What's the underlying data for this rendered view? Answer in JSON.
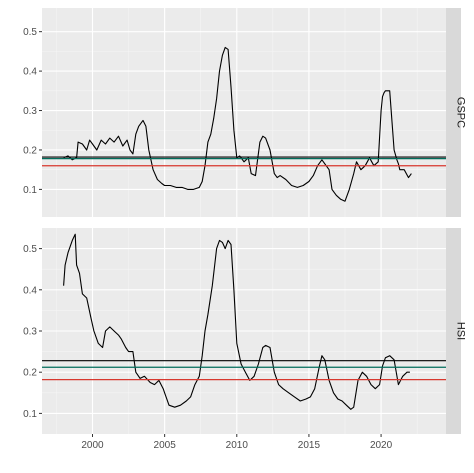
{
  "chart_data": {
    "type": "line",
    "layout": "faceted",
    "xlabel": "",
    "ylabel": "",
    "xlim": [
      1996.5,
      2024.5
    ],
    "x_ticks": [
      "2000",
      "2005",
      "2010",
      "2015",
      "2020"
    ],
    "grid": true,
    "colors": {
      "series": "#000000",
      "black_hline": "#000000",
      "green_hline": "#006d5b",
      "red_hline": "#d7382f",
      "panel_background": "#ebebeb",
      "strip_background": "#d9d9d9"
    },
    "facets": [
      {
        "label": "GSPC",
        "ylim": [
          0.03,
          0.56
        ],
        "y_ticks": [
          "0.1",
          "0.2",
          "0.3",
          "0.4",
          "0.5"
        ],
        "hlines": [
          {
            "color": "black",
            "value": 0.182
          },
          {
            "color": "green",
            "value": 0.178
          },
          {
            "color": "red",
            "value": 0.16
          }
        ],
        "series": {
          "x": [
            1998.0,
            1998.3,
            1998.6,
            1998.9,
            1999.0,
            1999.3,
            1999.6,
            1999.8,
            2000.0,
            2000.3,
            2000.6,
            2000.9,
            2001.2,
            2001.5,
            2001.8,
            2002.1,
            2002.4,
            2002.6,
            2002.8,
            2003.0,
            2003.2,
            2003.5,
            2003.7,
            2003.9,
            2004.2,
            2004.5,
            2004.8,
            2005.0,
            2005.4,
            2005.8,
            2006.2,
            2006.6,
            2007.0,
            2007.4,
            2007.6,
            2007.8,
            2008.0,
            2008.2,
            2008.4,
            2008.6,
            2008.8,
            2009.0,
            2009.2,
            2009.4,
            2009.6,
            2009.8,
            2010.0,
            2010.2,
            2010.5,
            2010.8,
            2011.0,
            2011.3,
            2011.6,
            2011.8,
            2012.0,
            2012.3,
            2012.6,
            2012.8,
            2013.0,
            2013.4,
            2013.8,
            2014.2,
            2014.6,
            2015.0,
            2015.3,
            2015.6,
            2015.9,
            2016.1,
            2016.4,
            2016.6,
            2016.9,
            2017.2,
            2017.5,
            2017.8,
            2018.1,
            2018.3,
            2018.6,
            2018.9,
            2019.2,
            2019.5,
            2019.8,
            2020.0,
            2020.1,
            2020.2,
            2020.3,
            2020.6,
            2020.9,
            2021.1,
            2021.2,
            2021.3,
            2021.6,
            2021.9,
            2022.1
          ],
          "y": [
            0.18,
            0.185,
            0.175,
            0.18,
            0.22,
            0.215,
            0.2,
            0.225,
            0.215,
            0.2,
            0.225,
            0.215,
            0.23,
            0.22,
            0.235,
            0.21,
            0.225,
            0.2,
            0.19,
            0.24,
            0.26,
            0.275,
            0.26,
            0.2,
            0.15,
            0.125,
            0.115,
            0.11,
            0.11,
            0.105,
            0.105,
            0.1,
            0.1,
            0.105,
            0.12,
            0.16,
            0.22,
            0.24,
            0.28,
            0.33,
            0.4,
            0.44,
            0.46,
            0.455,
            0.36,
            0.25,
            0.18,
            0.185,
            0.17,
            0.18,
            0.14,
            0.135,
            0.22,
            0.235,
            0.23,
            0.2,
            0.14,
            0.13,
            0.135,
            0.125,
            0.11,
            0.105,
            0.11,
            0.12,
            0.135,
            0.16,
            0.175,
            0.165,
            0.15,
            0.1,
            0.085,
            0.075,
            0.07,
            0.1,
            0.14,
            0.17,
            0.15,
            0.16,
            0.18,
            0.16,
            0.17,
            0.3,
            0.335,
            0.345,
            0.35,
            0.35,
            0.2,
            0.175,
            0.165,
            0.15,
            0.15,
            0.13,
            0.14
          ]
        }
      },
      {
        "label": "HSI",
        "ylim": [
          0.05,
          0.55
        ],
        "y_ticks": [
          "0.1",
          "0.2",
          "0.3",
          "0.4",
          "0.5"
        ],
        "hlines": [
          {
            "color": "black",
            "value": 0.228
          },
          {
            "color": "green",
            "value": 0.212
          },
          {
            "color": "red",
            "value": 0.182
          }
        ],
        "series": {
          "x": [
            1998.0,
            1998.1,
            1998.3,
            1998.6,
            1998.8,
            1998.9,
            1999.1,
            1999.3,
            1999.6,
            1999.9,
            2000.1,
            2000.4,
            2000.7,
            2000.9,
            2001.2,
            2001.5,
            2001.8,
            2002.0,
            2002.3,
            2002.5,
            2002.8,
            2003.0,
            2003.3,
            2003.6,
            2004.0,
            2004.3,
            2004.6,
            2004.9,
            2005.0,
            2005.3,
            2005.7,
            2006.1,
            2006.5,
            2006.8,
            2007.1,
            2007.4,
            2007.6,
            2007.8,
            2008.0,
            2008.3,
            2008.6,
            2008.8,
            2009.0,
            2009.2,
            2009.4,
            2009.6,
            2009.8,
            2010.0,
            2010.3,
            2010.6,
            2010.9,
            2011.2,
            2011.5,
            2011.8,
            2012.0,
            2012.3,
            2012.6,
            2012.9,
            2013.2,
            2013.6,
            2014.0,
            2014.4,
            2014.8,
            2015.1,
            2015.4,
            2015.7,
            2015.9,
            2016.1,
            2016.4,
            2016.7,
            2017.0,
            2017.3,
            2017.6,
            2017.9,
            2018.1,
            2018.4,
            2018.7,
            2019.0,
            2019.3,
            2019.6,
            2019.9,
            2020.1,
            2020.3,
            2020.6,
            2020.9,
            2021.2,
            2021.5,
            2021.8,
            2022.0
          ],
          "y": [
            0.41,
            0.46,
            0.49,
            0.52,
            0.535,
            0.46,
            0.44,
            0.39,
            0.38,
            0.33,
            0.3,
            0.27,
            0.26,
            0.3,
            0.31,
            0.3,
            0.29,
            0.28,
            0.26,
            0.25,
            0.25,
            0.2,
            0.185,
            0.19,
            0.175,
            0.17,
            0.18,
            0.16,
            0.15,
            0.12,
            0.115,
            0.12,
            0.13,
            0.14,
            0.17,
            0.19,
            0.24,
            0.3,
            0.34,
            0.41,
            0.5,
            0.52,
            0.515,
            0.5,
            0.52,
            0.51,
            0.4,
            0.27,
            0.22,
            0.2,
            0.18,
            0.19,
            0.22,
            0.26,
            0.265,
            0.26,
            0.2,
            0.17,
            0.16,
            0.15,
            0.14,
            0.13,
            0.135,
            0.14,
            0.16,
            0.21,
            0.24,
            0.23,
            0.18,
            0.15,
            0.135,
            0.13,
            0.12,
            0.11,
            0.115,
            0.18,
            0.2,
            0.19,
            0.17,
            0.16,
            0.17,
            0.215,
            0.235,
            0.24,
            0.23,
            0.17,
            0.19,
            0.2,
            0.2
          ]
        }
      }
    ]
  }
}
